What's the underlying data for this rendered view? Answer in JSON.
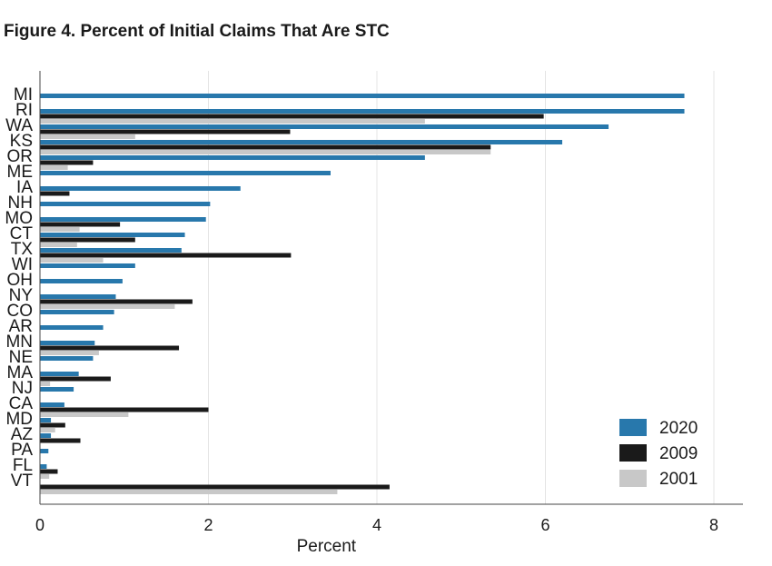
{
  "figure": {
    "title": "Figure 4. Percent of Initial Claims That Are STC"
  },
  "chart_data": {
    "type": "bar",
    "orientation": "horizontal",
    "xlabel": "Percent",
    "ylabel": "",
    "xlim": [
      0,
      8.4
    ],
    "xticks": [
      0,
      2,
      4,
      6,
      8
    ],
    "grid": true,
    "legend_position": "bottom-right",
    "categories": [
      "MI",
      "RI",
      "WA",
      "KS",
      "OR",
      "ME",
      "IA",
      "NH",
      "MO",
      "CT",
      "TX",
      "WI",
      "OH",
      "NY",
      "CO",
      "AR",
      "MN",
      "NE",
      "MA",
      "NJ",
      "CA",
      "MD",
      "AZ",
      "PA",
      "FL",
      "VT"
    ],
    "series": [
      {
        "name": "2020",
        "color": "#2878ac",
        "values": [
          7.65,
          7.65,
          6.75,
          6.2,
          4.57,
          3.45,
          2.38,
          2.02,
          1.97,
          1.72,
          1.68,
          1.13,
          0.98,
          0.9,
          0.88,
          0.75,
          0.65,
          0.63,
          0.46,
          0.4,
          0.29,
          0.13,
          0.13,
          0.1,
          0.08,
          0
        ]
      },
      {
        "name": "2009",
        "color": "#1a1a1a",
        "values": [
          0,
          5.98,
          2.97,
          5.35,
          0.63,
          0,
          0.35,
          0,
          0.95,
          1.13,
          2.98,
          0,
          0,
          1.81,
          0,
          0,
          1.65,
          0,
          0.84,
          0,
          2.0,
          0.3,
          0.48,
          0,
          0.21,
          4.15
        ]
      },
      {
        "name": "2001",
        "color": "#c8c8c8",
        "values": [
          0,
          4.57,
          1.13,
          5.35,
          0.33,
          0,
          0,
          0,
          0.47,
          0.44,
          0.75,
          0,
          0,
          1.6,
          0,
          0,
          0.7,
          0,
          0.12,
          0,
          1.05,
          0.18,
          0,
          0,
          0.11,
          3.53
        ]
      }
    ]
  }
}
